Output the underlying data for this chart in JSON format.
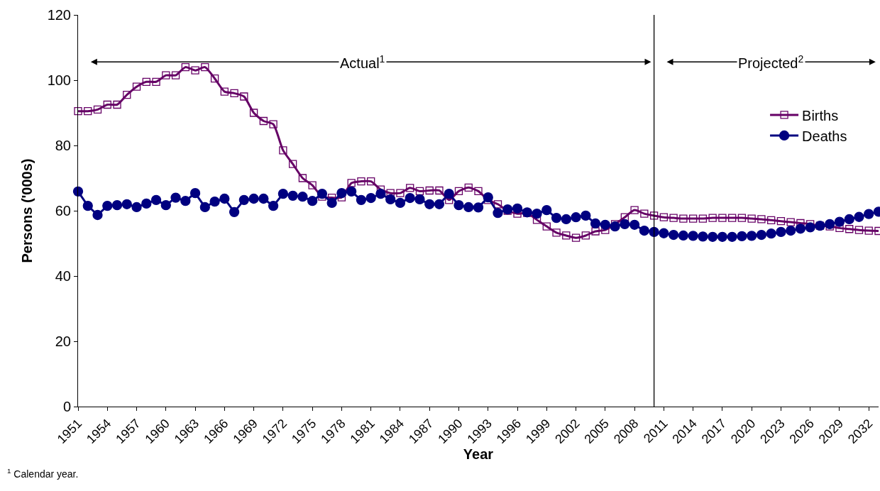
{
  "chart_data": {
    "type": "line",
    "xlabel": "Year",
    "ylabel": "Persons ('000s)",
    "x": [
      1951,
      1952,
      1953,
      1954,
      1955,
      1956,
      1957,
      1958,
      1959,
      1960,
      1961,
      1962,
      1963,
      1964,
      1965,
      1966,
      1967,
      1968,
      1969,
      1970,
      1971,
      1972,
      1973,
      1974,
      1975,
      1976,
      1977,
      1978,
      1979,
      1980,
      1981,
      1982,
      1983,
      1984,
      1985,
      1986,
      1987,
      1988,
      1989,
      1990,
      1991,
      1992,
      1993,
      1994,
      1995,
      1996,
      1997,
      1998,
      1999,
      2000,
      2001,
      2002,
      2003,
      2004,
      2005,
      2006,
      2007,
      2008,
      2009,
      2010,
      2011,
      2012,
      2013,
      2014,
      2015,
      2016,
      2017,
      2018,
      2019,
      2020,
      2021,
      2022,
      2023,
      2024,
      2025,
      2026,
      2027,
      2028,
      2029,
      2030,
      2031,
      2032,
      2033
    ],
    "series": [
      {
        "name": "Births",
        "color": "#660066",
        "marker": "square",
        "values": [
          90.5,
          90.5,
          91,
          92.5,
          92.5,
          95.5,
          98,
          99.5,
          99.5,
          101.5,
          101.5,
          104,
          103,
          104,
          100.5,
          96.5,
          96,
          95,
          90,
          87.5,
          86.5,
          78.5,
          74.3,
          70,
          67.8,
          64.3,
          64,
          64.1,
          68.5,
          69,
          69,
          66.5,
          65.4,
          65.4,
          67,
          66,
          66.2,
          66.2,
          63.3,
          66,
          67.1,
          66,
          63.3,
          62,
          60,
          59.1,
          59.3,
          57.2,
          55.2,
          53.3,
          52.4,
          51.7,
          52.4,
          53.7,
          54.1,
          55.9,
          58,
          60.2,
          59.1,
          58.5,
          58,
          57.8,
          57.6,
          57.6,
          57.6,
          57.8,
          57.8,
          57.8,
          57.8,
          57.6,
          57.4,
          57.1,
          56.8,
          56.5,
          56.2,
          55.9,
          55.4,
          55.2,
          54.7,
          54.4,
          54.1,
          53.9,
          53.8
        ]
      },
      {
        "name": "Deaths",
        "color": "#000080",
        "marker": "circle",
        "values": [
          65.9,
          61.5,
          58.7,
          61.5,
          61.7,
          62,
          61.1,
          62.2,
          63.3,
          61.7,
          64,
          63,
          65.4,
          61.1,
          62.8,
          63.7,
          59.6,
          63.3,
          63.7,
          63.7,
          61.5,
          65.2,
          64.6,
          64.3,
          63,
          65.2,
          62.4,
          65.4,
          65.9,
          63.3,
          63.9,
          65.2,
          63.5,
          62.4,
          63.9,
          63.5,
          62,
          62,
          65.2,
          61.7,
          61.1,
          61,
          64.1,
          59.3,
          60.4,
          60.7,
          59.5,
          59.1,
          60.2,
          57.8,
          57.4,
          58,
          58.5,
          56.1,
          55.7,
          55.2,
          55.9,
          55.7,
          53.9,
          53.5,
          53.1,
          52.6,
          52.4,
          52.3,
          52.1,
          52,
          52,
          52,
          52.2,
          52.3,
          52.6,
          53,
          53.5,
          53.9,
          54.5,
          54.9,
          55.4,
          55.9,
          56.6,
          57.4,
          58.1,
          59,
          59.7
        ]
      }
    ],
    "xlim": [
      1951,
      2033
    ],
    "xticks": [
      1951,
      1954,
      1957,
      1960,
      1963,
      1966,
      1969,
      1972,
      1975,
      1978,
      1981,
      1984,
      1987,
      1990,
      1993,
      1996,
      1999,
      2002,
      2005,
      2008,
      2011,
      2014,
      2017,
      2020,
      2023,
      2026,
      2029,
      2032
    ],
    "ylim": [
      0,
      120
    ],
    "yticks": [
      0,
      20,
      40,
      60,
      80,
      100,
      120
    ],
    "ref_lines": [
      {
        "axis": "x",
        "value": 2010,
        "color": "#000000"
      }
    ],
    "annotations": [
      "Actual$^{1}$",
      "Projected$^{2}$",
      "$^{1}$ Calendar year."
    ],
    "legend": "right",
    "line_style": "solid"
  }
}
